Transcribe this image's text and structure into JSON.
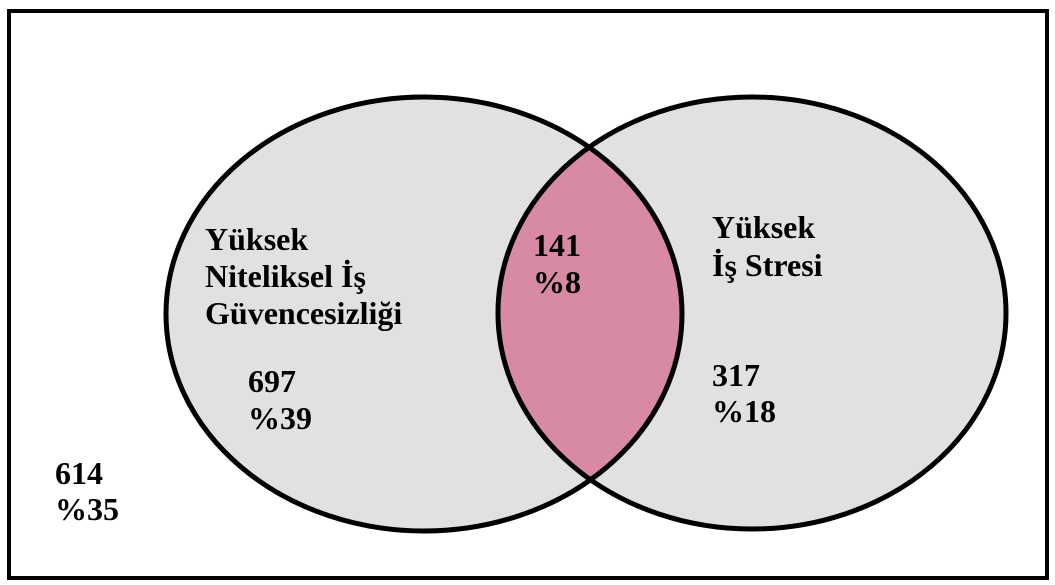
{
  "sets": [
    {
      "label_lines": [
        "Yüksek",
        "Niteliksel İş",
        "Güvencesizliği"
      ]
    },
    {
      "label_lines": [
        "Yüksek",
        "İş Stresi"
      ]
    }
  ],
  "regions": {
    "left_only": {
      "count": 697,
      "percent": "%39"
    },
    "both": {
      "count": 141,
      "percent": "%8"
    },
    "right_only": {
      "count": 317,
      "percent": "%18"
    },
    "neither": {
      "count": 614,
      "percent": "%35"
    }
  }
}
